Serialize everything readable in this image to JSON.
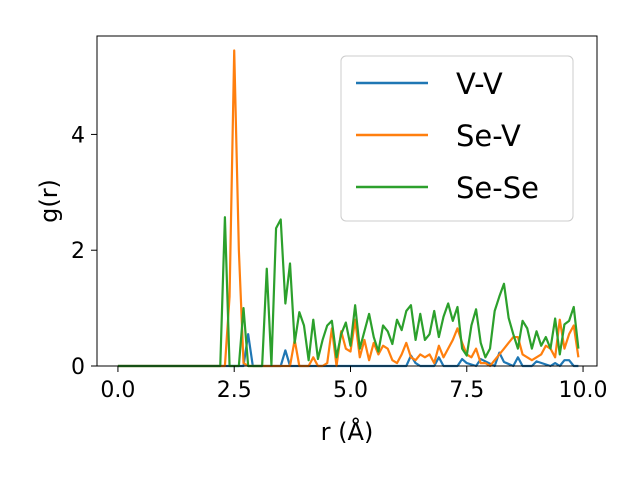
{
  "chart_data": {
    "type": "line",
    "xlabel": "r (Å)",
    "ylabel": "g(r)",
    "xlim": [
      -0.45,
      10.3
    ],
    "ylim": [
      0,
      5.7
    ],
    "xticks": [
      0.0,
      2.5,
      5.0,
      7.5,
      10.0
    ],
    "xtick_labels": [
      "0.0",
      "2.5",
      "5.0",
      "7.5",
      "10.0"
    ],
    "yticks": [
      0,
      2,
      4
    ],
    "ytick_labels": [
      "0",
      "2",
      "4"
    ],
    "grid": false,
    "legend_position": "upper right",
    "series": [
      {
        "name": "V-V",
        "color": "#1f77b4",
        "x": [
          0.0,
          2.2,
          2.5,
          2.6,
          2.7,
          2.8,
          2.9,
          3.5,
          3.6,
          3.7,
          3.8,
          6.2,
          6.3,
          6.4,
          6.5,
          6.8,
          6.9,
          7.0,
          7.3,
          7.4,
          7.5,
          7.7,
          7.8,
          8.1,
          8.2,
          8.3,
          8.5,
          8.6,
          8.7,
          8.9,
          9.0,
          9.3,
          9.4,
          9.5,
          9.6,
          9.7,
          9.8,
          9.9
        ],
        "y": [
          0,
          0,
          0,
          0,
          0,
          0.55,
          0,
          0,
          0.27,
          0,
          0,
          0,
          0.18,
          0.05,
          0,
          0,
          0.15,
          0,
          0,
          0.12,
          0.05,
          0,
          0.12,
          0,
          0.23,
          0.07,
          0,
          0.15,
          0,
          0,
          0.08,
          0,
          0.05,
          0,
          0.1,
          0.1,
          0,
          0
        ]
      },
      {
        "name": "Se-V",
        "color": "#ff7f0e",
        "x": [
          0.0,
          2.2,
          2.3,
          2.4,
          2.5,
          2.6,
          2.7,
          2.8,
          2.9,
          3.0,
          3.1,
          3.2,
          3.3,
          3.4,
          3.5,
          3.6,
          3.7,
          3.8,
          3.9,
          4.0,
          4.1,
          4.2,
          4.3,
          4.4,
          4.5,
          4.6,
          4.7,
          4.8,
          4.9,
          5.0,
          5.1,
          5.2,
          5.3,
          5.4,
          5.5,
          5.6,
          5.7,
          5.8,
          5.9,
          6.0,
          6.1,
          6.2,
          6.3,
          6.4,
          6.5,
          6.6,
          6.7,
          6.8,
          6.9,
          7.0,
          7.1,
          7.2,
          7.3,
          7.4,
          7.5,
          7.6,
          7.7,
          7.8,
          7.9,
          8.0,
          8.1,
          8.2,
          8.3,
          8.4,
          8.5,
          8.6,
          8.7,
          8.8,
          8.9,
          9.0,
          9.1,
          9.2,
          9.3,
          9.4,
          9.5,
          9.6,
          9.7,
          9.8,
          9.9
        ],
        "y": [
          0,
          0,
          0,
          1.2,
          5.45,
          2.0,
          0.05,
          0,
          0,
          0,
          0,
          0,
          0,
          0,
          0,
          0,
          0,
          0.45,
          0,
          0,
          0,
          0.15,
          0,
          0,
          0.05,
          0.65,
          0,
          0.6,
          0.3,
          0.25,
          0.8,
          0.15,
          0.45,
          0.1,
          0.4,
          0.2,
          0.35,
          0.3,
          0.1,
          0.05,
          0.2,
          0.4,
          0.15,
          0.1,
          0.2,
          0.15,
          0.2,
          0.05,
          0.35,
          0.15,
          0.3,
          0.45,
          0.65,
          0.4,
          0.2,
          0.15,
          0.3,
          0.05,
          0.05,
          0,
          0.1,
          0.2,
          0.3,
          0.4,
          0.5,
          0.5,
          0.2,
          0.15,
          0.1,
          0.15,
          0.2,
          0.35,
          0.3,
          0.15,
          0.8,
          0.3,
          0.55,
          0.7,
          0.15
        ]
      },
      {
        "name": "Se-Se",
        "color": "#2ca02c",
        "x": [
          0.0,
          2.1,
          2.2,
          2.3,
          2.4,
          2.5,
          2.6,
          2.7,
          2.8,
          2.9,
          3.0,
          3.1,
          3.2,
          3.3,
          3.4,
          3.5,
          3.6,
          3.7,
          3.8,
          3.9,
          4.0,
          4.1,
          4.2,
          4.3,
          4.4,
          4.5,
          4.6,
          4.7,
          4.8,
          4.9,
          5.0,
          5.1,
          5.2,
          5.3,
          5.4,
          5.5,
          5.6,
          5.7,
          5.8,
          5.9,
          6.0,
          6.1,
          6.2,
          6.3,
          6.4,
          6.5,
          6.6,
          6.7,
          6.8,
          6.9,
          7.0,
          7.1,
          7.2,
          7.3,
          7.4,
          7.5,
          7.6,
          7.7,
          7.8,
          7.9,
          8.0,
          8.1,
          8.2,
          8.3,
          8.4,
          8.5,
          8.6,
          8.7,
          8.8,
          8.9,
          9.0,
          9.1,
          9.2,
          9.3,
          9.4,
          9.5,
          9.6,
          9.7,
          9.8,
          9.9
        ],
        "y": [
          0,
          0,
          0,
          2.57,
          0,
          0,
          0,
          1.0,
          0,
          0,
          0,
          0,
          1.68,
          0.02,
          2.38,
          2.53,
          1.08,
          1.77,
          0.4,
          0.93,
          0.7,
          0.1,
          0.8,
          0.12,
          0.45,
          0.7,
          0.78,
          0.15,
          0.55,
          0.75,
          0.35,
          1.05,
          0.3,
          0.6,
          0.9,
          0.5,
          0.25,
          0.7,
          0.6,
          0.38,
          0.8,
          0.62,
          0.95,
          1.05,
          0.45,
          0.9,
          0.45,
          0.55,
          0.95,
          0.5,
          0.85,
          1.08,
          0.78,
          1.02,
          0.3,
          0.18,
          0.7,
          0.98,
          0.4,
          0.15,
          0.3,
          0.95,
          1.2,
          1.42,
          0.83,
          0.55,
          0.3,
          0.78,
          0.65,
          0.3,
          0.6,
          0.35,
          0.5,
          0.3,
          0.82,
          0.2,
          0.72,
          0.78,
          1.02,
          0.3
        ]
      }
    ]
  }
}
